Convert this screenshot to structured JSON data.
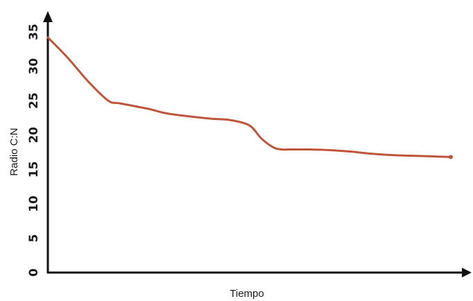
{
  "chart_data": {
    "type": "line",
    "title": "",
    "xlabel": "Tiempo",
    "ylabel": "Radio C:N",
    "ylim": [
      0,
      35
    ],
    "yticks": [
      0,
      5,
      10,
      15,
      20,
      25,
      30,
      35
    ],
    "grid": false,
    "legend": "none",
    "x_ticks_shown": false,
    "line_color": "#c0543a",
    "axis_color": "#111111",
    "series": [
      {
        "x": [
          0,
          5,
          10,
          15,
          18,
          25,
          30,
          40,
          45,
          50,
          53,
          56,
          58,
          60,
          65,
          70,
          75,
          80,
          85,
          90,
          95,
          100
        ],
        "values": [
          34.2,
          31.2,
          27.8,
          25,
          24.6,
          23.8,
          23.1,
          22.4,
          22.2,
          21.4,
          19.5,
          18.2,
          17.9,
          17.9,
          17.9,
          17.8,
          17.6,
          17.3,
          17.1,
          17,
          16.9,
          16.8
        ]
      }
    ]
  }
}
